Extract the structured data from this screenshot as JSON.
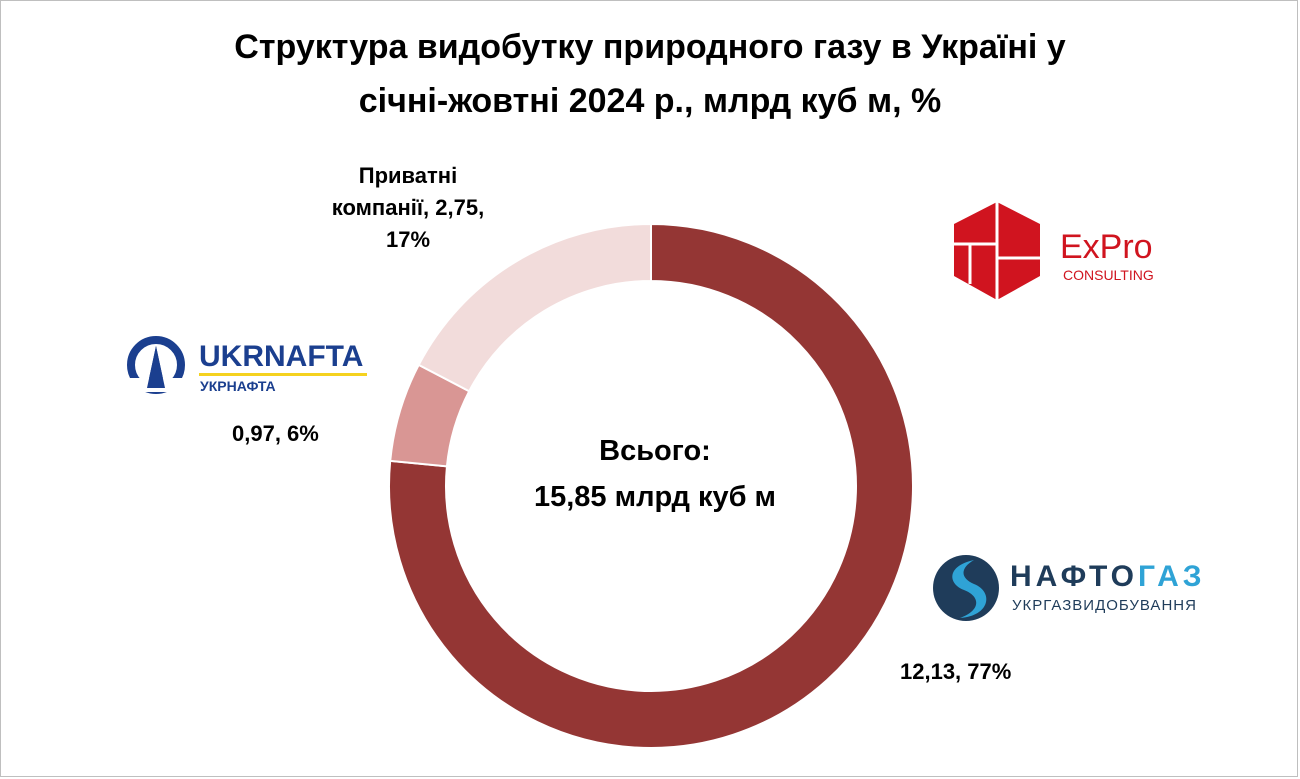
{
  "title": {
    "line1": "Структура видобутку природного газу в Україні у",
    "line2": "січні-жовтні 2024 р., млрд куб м, %"
  },
  "center": {
    "line1": "Всього:",
    "line2": "15,85 млрд куб м"
  },
  "chart_data": {
    "type": "pie",
    "donut": true,
    "title": "Структура видобутку природного газу в Україні у січні-жовтні 2024 р., млрд куб м, %",
    "total_label": "Всього: 15,85 млрд куб м",
    "slices": [
      {
        "name": "Нафтогаз Укргазвидобування",
        "value": 12.13,
        "percent": 77,
        "label": "12,13, 77%",
        "color": "#943634"
      },
      {
        "name": "Укрнафта",
        "value": 0.97,
        "percent": 6,
        "label": "0,97, 6%",
        "color": "#d99694"
      },
      {
        "name": "Приватні компанії",
        "value": 2.75,
        "percent": 17,
        "label_lines": [
          "Приватні",
          "компанії, 2,75,",
          "17%"
        ],
        "color": "#f2dcdb"
      }
    ]
  },
  "logos": {
    "ukrnafta": {
      "text_main": "UKRNAFTA",
      "text_sub": "УКРНАФТА",
      "color": "#1b3f8f",
      "accent": "#f5d21f"
    },
    "expro": {
      "text_main": "ExPro",
      "text_sub": "CONSULTING",
      "color": "#d0141f"
    },
    "naftogaz": {
      "text_main": "НАФТОГАЗ",
      "text_main_a": "НАФТО",
      "text_main_b": "ГАЗ",
      "text_sub": "УКРГАЗВИДОБУВАННЯ",
      "color": "#1f3c5a",
      "accent": "#2fa3d6"
    }
  }
}
